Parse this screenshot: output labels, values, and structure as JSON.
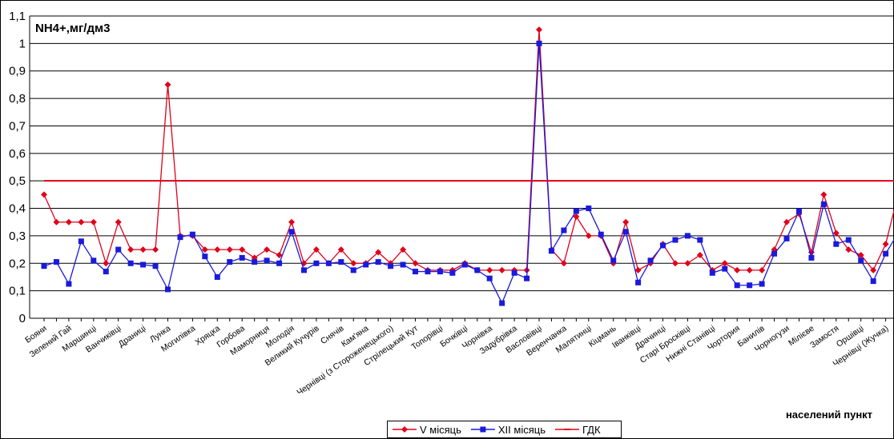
{
  "chart_data": {
    "type": "line",
    "title": "NH4+,мг/дм3",
    "x_label": "населений пункт",
    "categories": [
      "Бояни",
      null,
      "Зелений Гай",
      null,
      "Маршинці",
      null,
      "Ванчиківці",
      null,
      "Драниці",
      null,
      "Лунка",
      null,
      "Могилівка",
      null,
      "Хряцка",
      null,
      "Горбова",
      null,
      "Маморниця",
      null,
      "Молодія",
      null,
      "Великий Кучурів",
      null,
      "Снячів",
      null,
      "Кам'яна",
      null,
      "Чернівці (з Стороженецького)",
      null,
      "Стрілецький Кут",
      null,
      "Топорівці",
      null,
      "Бочківці",
      null,
      "Чорнівка",
      null,
      "Задубрівка",
      null,
      "Васловівці",
      null,
      "Веренчанка",
      null,
      "Малятинці",
      null,
      "Кіцмань",
      null,
      "Іванківці",
      null,
      "Драчинці",
      null,
      "Старі Бросківці",
      null,
      "Нижні Станівці",
      null,
      "Чортория",
      null,
      "Банилів",
      null,
      "Чорногузи",
      null,
      "Мілієве",
      null,
      "Замостя",
      null,
      "Оршівці",
      null,
      "Чернівці (Жучка)",
      null
    ],
    "series": [
      {
        "name": "V місяць",
        "color": "#e0001a",
        "marker": "diamond",
        "values": [
          0.45,
          0.35,
          0.35,
          0.35,
          0.35,
          0.2,
          0.35,
          0.25,
          0.25,
          0.25,
          0.85,
          0.3,
          0.3,
          0.25,
          0.25,
          0.25,
          0.25,
          0.22,
          0.25,
          0.23,
          0.35,
          0.2,
          0.25,
          0.2,
          0.25,
          0.2,
          0.2,
          0.24,
          0.2,
          0.25,
          0.2,
          0.175,
          0.175,
          0.175,
          0.2,
          0.175,
          0.175,
          0.175,
          0.175,
          0.175,
          1.05,
          0.25,
          0.2,
          0.37,
          0.3,
          0.3,
          0.2,
          0.35,
          0.175,
          0.2,
          0.27,
          0.2,
          0.2,
          0.23,
          0.175,
          0.2,
          0.175,
          0.175,
          0.175,
          0.25,
          0.35,
          0.38,
          0.24,
          0.45,
          0.31,
          0.25,
          0.23,
          0.175,
          0.27,
          0.45
        ]
      },
      {
        "name": "XII місяць",
        "color": "#1a1adc",
        "marker": "square",
        "values": [
          0.19,
          0.205,
          0.125,
          0.28,
          0.21,
          0.17,
          0.25,
          0.2,
          0.195,
          0.19,
          0.105,
          0.295,
          0.305,
          0.225,
          0.15,
          0.205,
          0.22,
          0.205,
          0.21,
          0.2,
          0.315,
          0.175,
          0.2,
          0.2,
          0.205,
          0.175,
          0.195,
          0.205,
          0.19,
          0.195,
          0.17,
          0.17,
          0.17,
          0.165,
          0.195,
          0.175,
          0.145,
          0.055,
          0.165,
          0.145,
          1.0,
          0.245,
          0.32,
          0.39,
          0.4,
          0.305,
          0.21,
          0.315,
          0.13,
          0.21,
          0.265,
          0.285,
          0.3,
          0.285,
          0.165,
          0.18,
          0.12,
          0.12,
          0.125,
          0.235,
          0.29,
          0.39,
          0.22,
          0.415,
          0.27,
          0.285,
          0.21,
          0.135,
          0.235,
          0.31
        ]
      },
      {
        "name": "ГДК",
        "color": "#e0001a",
        "marker": "dash",
        "values": [
          0.5,
          0.5,
          0.5,
          0.5,
          0.5,
          0.5,
          0.5,
          0.5,
          0.5,
          0.5,
          0.5,
          0.5,
          0.5,
          0.5,
          0.5,
          0.5,
          0.5,
          0.5,
          0.5,
          0.5,
          0.5,
          0.5,
          0.5,
          0.5,
          0.5,
          0.5,
          0.5,
          0.5,
          0.5,
          0.5,
          0.5,
          0.5,
          0.5,
          0.5,
          0.5,
          0.5,
          0.5,
          0.5,
          0.5,
          0.5,
          0.5,
          0.5,
          0.5,
          0.5,
          0.5,
          0.5,
          0.5,
          0.5,
          0.5,
          0.5,
          0.5,
          0.5,
          0.5,
          0.5,
          0.5,
          0.5,
          0.5,
          0.5,
          0.5,
          0.5,
          0.5,
          0.5,
          0.5,
          0.5,
          0.5,
          0.5,
          0.5,
          0.5,
          0.5,
          0.5
        ]
      }
    ],
    "ylim": [
      0,
      1.1
    ],
    "yticks": [
      0,
      {
        "value": 0.1,
        "label": "0,1"
      },
      {
        "value": 0.2,
        "label": "0,2"
      },
      {
        "value": 0.3,
        "label": "0,3"
      },
      {
        "value": 0.4,
        "label": "0,4"
      },
      {
        "value": 0.5,
        "label": "0,5"
      },
      {
        "value": 0.6,
        "label": "0,6"
      },
      {
        "value": 0.7,
        "label": "0,7"
      },
      {
        "value": 0.8,
        "label": "0,8"
      },
      {
        "value": 0.9,
        "label": "0,9"
      },
      1,
      {
        "value": 1.1,
        "label": "1,1"
      }
    ],
    "grid": true
  }
}
